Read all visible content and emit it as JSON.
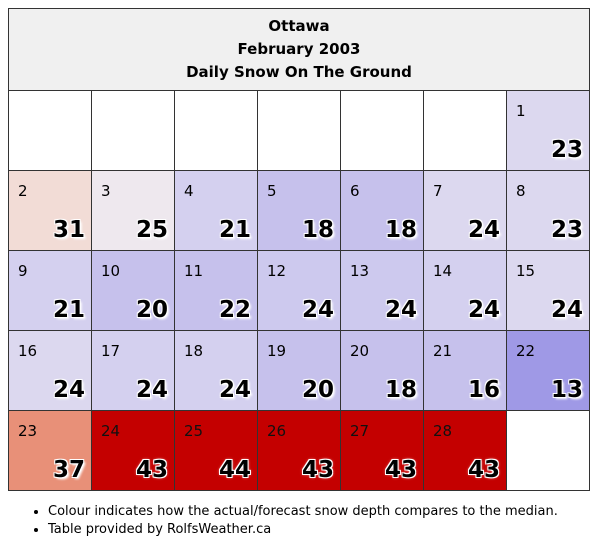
{
  "header": {
    "city": "Ottawa",
    "period": "February 2003",
    "subtitle": "Daily Snow On The Ground"
  },
  "weeks": [
    [
      {
        "day": "",
        "value": "",
        "color": "#ffffff"
      },
      {
        "day": "",
        "value": "",
        "color": "#ffffff"
      },
      {
        "day": "",
        "value": "",
        "color": "#ffffff"
      },
      {
        "day": "",
        "value": "",
        "color": "#ffffff"
      },
      {
        "day": "",
        "value": "",
        "color": "#ffffff"
      },
      {
        "day": "",
        "value": "",
        "color": "#ffffff"
      },
      {
        "day": "1",
        "value": "23",
        "color": "#dcd8ef"
      }
    ],
    [
      {
        "day": "2",
        "value": "31",
        "color": "#f2dcd6"
      },
      {
        "day": "3",
        "value": "25",
        "color": "#eee8ee"
      },
      {
        "day": "4",
        "value": "21",
        "color": "#d4d0ef"
      },
      {
        "day": "5",
        "value": "18",
        "color": "#c6c1ec"
      },
      {
        "day": "6",
        "value": "18",
        "color": "#c6c1ec"
      },
      {
        "day": "7",
        "value": "24",
        "color": "#dcd8ef"
      },
      {
        "day": "8",
        "value": "23",
        "color": "#dcd8ef"
      }
    ],
    [
      {
        "day": "9",
        "value": "21",
        "color": "#d4d0ef"
      },
      {
        "day": "10",
        "value": "20",
        "color": "#c6c1ec"
      },
      {
        "day": "11",
        "value": "22",
        "color": "#c6c1ec"
      },
      {
        "day": "12",
        "value": "24",
        "color": "#cdc9ee"
      },
      {
        "day": "13",
        "value": "24",
        "color": "#cdc9ee"
      },
      {
        "day": "14",
        "value": "24",
        "color": "#d4d0ef"
      },
      {
        "day": "15",
        "value": "24",
        "color": "#dcd8ef"
      }
    ],
    [
      {
        "day": "16",
        "value": "24",
        "color": "#dcd8ef"
      },
      {
        "day": "17",
        "value": "24",
        "color": "#d4d0ef"
      },
      {
        "day": "18",
        "value": "24",
        "color": "#d4d0ef"
      },
      {
        "day": "19",
        "value": "20",
        "color": "#c6c1ec"
      },
      {
        "day": "20",
        "value": "18",
        "color": "#c6c1ec"
      },
      {
        "day": "21",
        "value": "16",
        "color": "#c6c1ec"
      },
      {
        "day": "22",
        "value": "13",
        "color": "#9f99e6"
      }
    ],
    [
      {
        "day": "23",
        "value": "37",
        "color": "#e89078"
      },
      {
        "day": "24",
        "value": "43",
        "color": "#c40000"
      },
      {
        "day": "25",
        "value": "44",
        "color": "#c40000"
      },
      {
        "day": "26",
        "value": "43",
        "color": "#c40000"
      },
      {
        "day": "27",
        "value": "43",
        "color": "#c40000"
      },
      {
        "day": "28",
        "value": "43",
        "color": "#c40000"
      },
      {
        "day": "",
        "value": "",
        "color": "#ffffff"
      }
    ]
  ],
  "notes": [
    "Colour indicates how the actual/forecast snow depth compares to the median.",
    "Table provided by RolfsWeather.ca"
  ]
}
